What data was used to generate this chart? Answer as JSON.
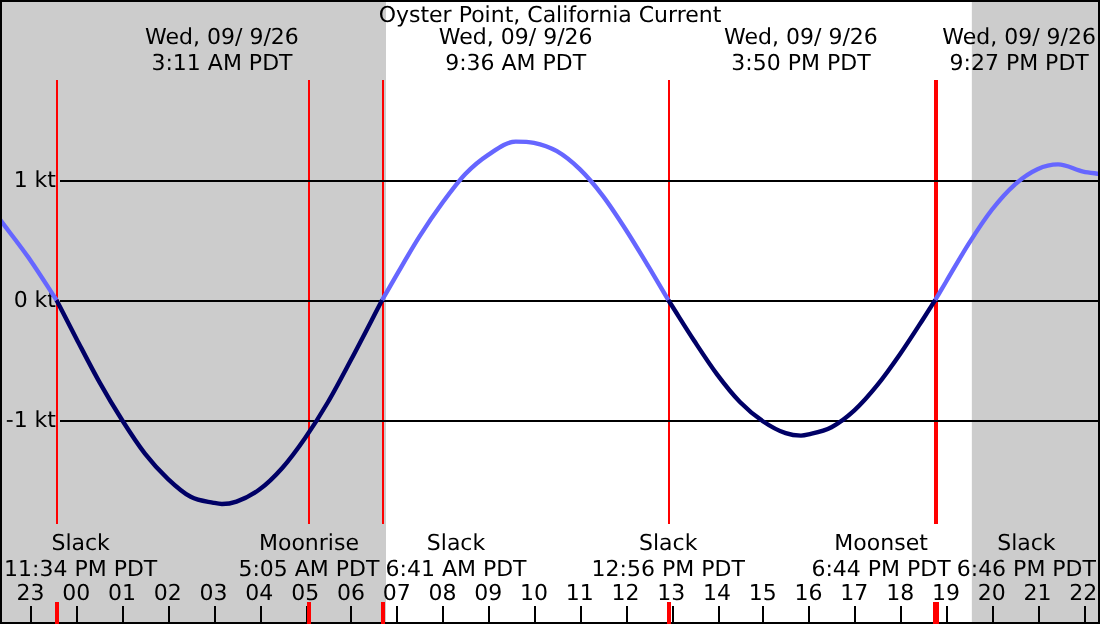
{
  "chart_data": {
    "type": "line",
    "title": "Oyster Point, California Current",
    "x": [
      "--09-08T22:20",
      "--09-08T23:00",
      "--09-08T23:34",
      "--09-09T00:00",
      "--09-09T00:30",
      "--09-09T01:00",
      "--09-09T01:30",
      "--09-09T02:00",
      "--09-09T02:30",
      "--09-09T03:00",
      "--09-09T03:11",
      "--09-09T03:30",
      "--09-09T04:00",
      "--09-09T04:30",
      "--09-09T05:00",
      "--09-09T05:30",
      "--09-09T06:00",
      "--09-09T06:41",
      "--09-09T07:00",
      "--09-09T07:30",
      "--09-09T08:00",
      "--09-09T08:30",
      "--09-09T09:00",
      "--09-09T09:36",
      "--09-09T10:00",
      "--09-09T10:30",
      "--09-09T11:00",
      "--09-09T11:30",
      "--09-09T12:00",
      "--09-09T12:30",
      "--09-09T12:56",
      "--09-09T13:00",
      "--09-09T13:30",
      "--09-09T14:00",
      "--09-09T14:30",
      "--09-09T15:00",
      "--09-09T15:30",
      "--09-09T15:50",
      "--09-09T16:00",
      "--09-09T16:30",
      "--09-09T17:00",
      "--09-09T17:30",
      "--09-09T18:00",
      "--09-09T18:30",
      "--09-09T18:46",
      "--09-09T19:00",
      "--09-09T19:30",
      "--09-09T20:00",
      "--09-09T20:30",
      "--09-09T21:00",
      "--09-09T21:27",
      "--09-09T22:00",
      "--09-09T22:22"
    ],
    "series": [
      {
        "color": "#6666ff",
        "values": [
          0.67,
          0.33,
          0,
          null,
          null,
          null,
          null,
          null,
          null,
          null,
          null,
          null,
          null,
          null,
          null,
          null,
          null,
          0,
          0.21,
          0.53,
          0.81,
          1.05,
          1.21,
          1.32,
          1.31,
          1.24,
          1.09,
          0.87,
          0.59,
          0.28,
          0,
          null,
          null,
          null,
          null,
          null,
          null,
          null,
          null,
          null,
          null,
          null,
          null,
          null,
          0,
          0.15,
          0.47,
          0.75,
          0.96,
          1.09,
          1.13,
          1.07,
          1.05
        ]
      },
      {
        "color": "#000066",
        "values": [
          null,
          null,
          0,
          -0.32,
          -0.68,
          -1,
          -1.28,
          -1.49,
          -1.64,
          -1.69,
          -1.7,
          -1.68,
          -1.58,
          -1.4,
          -1.15,
          -0.85,
          -0.5,
          0,
          null,
          null,
          null,
          null,
          null,
          null,
          null,
          null,
          null,
          null,
          null,
          null,
          0,
          -0.04,
          -0.34,
          -0.62,
          -0.85,
          -1.01,
          -1.11,
          -1.13,
          -1.12,
          -1.06,
          -0.92,
          -0.71,
          -0.45,
          -0.16,
          0,
          null,
          null,
          null,
          null,
          null,
          null,
          null,
          null
        ]
      }
    ],
    "xlim": [
      "--09-08T22:20",
      "--09-09T22:22"
    ],
    "xticks": [
      {
        "value": "--09-08T23:00",
        "label": "23"
      },
      {
        "value": "--09-09T00:00",
        "label": "00"
      },
      {
        "value": "--09-09T01:00",
        "label": "01"
      },
      {
        "value": "--09-09T02:00",
        "label": "02"
      },
      {
        "value": "--09-09T03:00",
        "label": "03"
      },
      {
        "value": "--09-09T04:00",
        "label": "04"
      },
      {
        "value": "--09-09T05:00",
        "label": "05"
      },
      {
        "value": "--09-09T06:00",
        "label": "06"
      },
      {
        "value": "--09-09T07:00",
        "label": "07"
      },
      {
        "value": "--09-09T08:00",
        "label": "08"
      },
      {
        "value": "--09-09T09:00",
        "label": "09"
      },
      {
        "value": "--09-09T10:00",
        "label": "10"
      },
      {
        "value": "--09-09T11:00",
        "label": "11"
      },
      {
        "value": "--09-09T12:00",
        "label": "12"
      },
      {
        "value": "--09-09T13:00",
        "label": "13"
      },
      {
        "value": "--09-09T14:00",
        "label": "14"
      },
      {
        "value": "--09-09T15:00",
        "label": "15"
      },
      {
        "value": "--09-09T16:00",
        "label": "16"
      },
      {
        "value": "--09-09T17:00",
        "label": "17"
      },
      {
        "value": "--09-09T18:00",
        "label": "18"
      },
      {
        "value": "--09-09T19:00",
        "label": "19"
      },
      {
        "value": "--09-09T20:00",
        "label": "20"
      },
      {
        "value": "--09-09T21:00",
        "label": "21"
      },
      {
        "value": "--09-09T22:00",
        "label": "22"
      }
    ],
    "ylim": [
      -2.7,
      2.5
    ],
    "yticks": [
      {
        "value": -1,
        "label": "-1 kt"
      },
      {
        "value": 0,
        "label": "0 kt"
      },
      {
        "value": 1,
        "label": "1 kt"
      }
    ],
    "grid": "y",
    "legend": false,
    "marker": "none",
    "line_style": "solid",
    "bands": [
      {
        "axis": "x",
        "from": "--09-08T22:20",
        "to": "--09-09T06:46",
        "color": "#cccccc"
      },
      {
        "axis": "x",
        "from": "--09-09T19:34",
        "to": "--09-09T22:22",
        "color": "#cccccc"
      }
    ],
    "ref_lines": [
      {
        "axis": "x",
        "value": "--09-08T23:34",
        "label": "Slack\n11:34 PM PDT",
        "color": "#ff0000"
      },
      {
        "axis": "x",
        "value": "--09-09T05:05",
        "label": "Moonrise\n5:05 AM PDT",
        "color": "#ff0000"
      },
      {
        "axis": "x",
        "value": "--09-09T06:41",
        "label": "Slack\n6:41 AM PDT",
        "color": "#ff0000"
      },
      {
        "axis": "x",
        "value": "--09-09T12:56",
        "label": "Slack\n12:56 PM PDT",
        "color": "#ff0000"
      },
      {
        "axis": "x",
        "value": "--09-09T18:44",
        "label": "Moonset\n6:44 PM PDT",
        "color": "#ff0000"
      },
      {
        "axis": "x",
        "value": "--09-09T18:46",
        "label": "Slack\n6:46 PM PDT",
        "color": "#ff0000"
      }
    ],
    "annotations": [
      "Wed, 09/ 9/26\n3:11 AM PDT",
      "Wed, 09/ 9/26\n9:36 AM PDT",
      "Wed, 09/ 9/26\n3:50 PM PDT",
      "Wed, 09/ 9/26\n9:27 PM PDT"
    ]
  }
}
